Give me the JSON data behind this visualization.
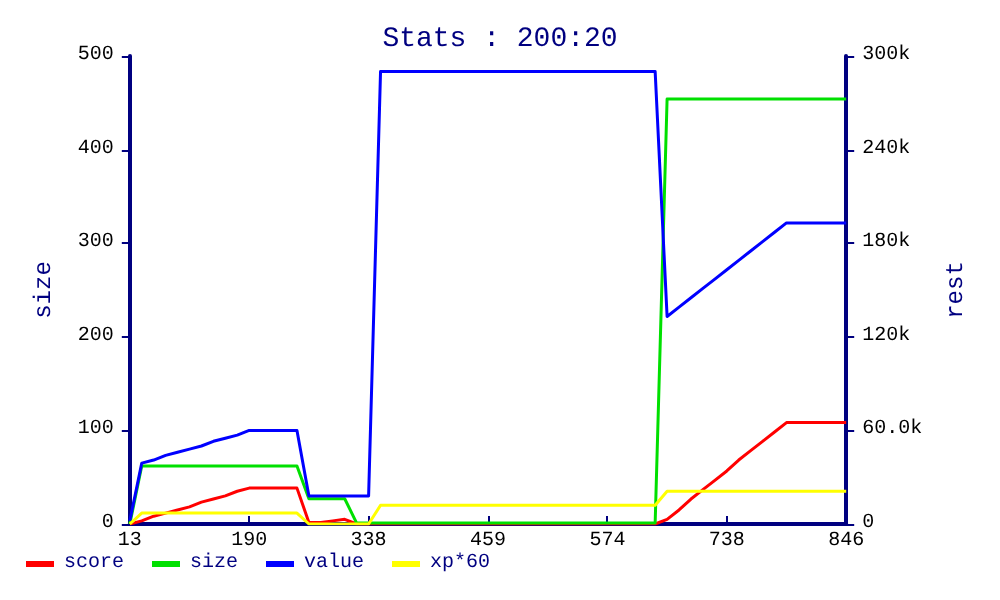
{
  "chart_data": {
    "type": "line",
    "title": "Stats : 200:20",
    "ylabel": "size",
    "y2label": "rest",
    "categories": [
      "13",
      null,
      null,
      null,
      null,
      null,
      null,
      null,
      null,
      null,
      "190",
      null,
      null,
      null,
      null,
      null,
      null,
      null,
      null,
      null,
      "338",
      null,
      null,
      null,
      null,
      null,
      null,
      null,
      null,
      null,
      "459",
      null,
      null,
      null,
      null,
      null,
      null,
      null,
      null,
      null,
      "574",
      null,
      null,
      null,
      null,
      null,
      null,
      null,
      null,
      null,
      "738",
      null,
      null,
      null,
      null,
      null,
      null,
      null,
      null,
      null,
      "846"
    ],
    "ylim": [
      0,
      500
    ],
    "yticks": [
      0,
      100,
      200,
      300,
      400,
      500
    ],
    "y2lim": [
      0,
      300000
    ],
    "y2ticks": [
      0,
      {
        "value": 60000,
        "label": "60.0k"
      },
      {
        "value": 120000,
        "label": "120k"
      },
      {
        "value": 180000,
        "label": "180k"
      },
      {
        "value": 240000,
        "label": "240k"
      },
      {
        "value": 300000,
        "label": "300k"
      }
    ],
    "grid": false,
    "legend": "bottom left",
    "marker": "none",
    "line_style": "solid",
    "series": [
      {
        "name": "score",
        "color": "#ff0000",
        "axis": "y2",
        "values": [
          0,
          2000,
          5000,
          7000,
          9000,
          11000,
          14000,
          16000,
          18000,
          21000,
          23000,
          23000,
          23000,
          23000,
          23000,
          1000,
          1000,
          2000,
          3000,
          0,
          0,
          0,
          0,
          0,
          0,
          0,
          0,
          0,
          0,
          0,
          0,
          0,
          0,
          0,
          0,
          0,
          0,
          0,
          0,
          0,
          0,
          0,
          0,
          0,
          0,
          3000,
          9000,
          16000,
          22000,
          28000,
          34000,
          41000,
          47000,
          53000,
          59000,
          65000,
          65000,
          65000,
          65000,
          65000,
          65000
        ]
      },
      {
        "name": "size",
        "color": "#00e000",
        "values": [
          0,
          62,
          62,
          62,
          62,
          62,
          62,
          62,
          62,
          62,
          62,
          62,
          62,
          62,
          62,
          27,
          27,
          27,
          27,
          1,
          1,
          1,
          1,
          1,
          1,
          1,
          1,
          1,
          1,
          1,
          1,
          1,
          1,
          1,
          1,
          1,
          1,
          1,
          1,
          1,
          1,
          1,
          1,
          1,
          1,
          454,
          454,
          454,
          454,
          454,
          454,
          454,
          454,
          454,
          454,
          454,
          454,
          454,
          454,
          454,
          454
        ]
      },
      {
        "name": "value",
        "color": "#0000ff",
        "axis": "y2",
        "values": [
          2000,
          39000,
          41000,
          44000,
          46000,
          48000,
          50000,
          53000,
          55000,
          57000,
          60000,
          60000,
          60000,
          60000,
          60000,
          18000,
          18000,
          18000,
          18000,
          18000,
          18000,
          290000,
          290000,
          290000,
          290000,
          290000,
          290000,
          290000,
          290000,
          290000,
          290000,
          290000,
          290000,
          290000,
          290000,
          290000,
          290000,
          290000,
          290000,
          290000,
          290000,
          290000,
          290000,
          290000,
          290000,
          133000,
          139000,
          145000,
          151000,
          157000,
          163000,
          169000,
          175000,
          181000,
          187000,
          193000,
          193000,
          193000,
          193000,
          193000,
          193000
        ]
      },
      {
        "name": "xp*60",
        "color": "#ffff00",
        "axis": "y2",
        "values": [
          0,
          7000,
          7000,
          7000,
          7000,
          7000,
          7000,
          7000,
          7000,
          7000,
          7000,
          7000,
          7000,
          7000,
          7000,
          0,
          0,
          0,
          0,
          0,
          0,
          12000,
          12000,
          12000,
          12000,
          12000,
          12000,
          12000,
          12000,
          12000,
          12000,
          12000,
          12000,
          12000,
          12000,
          12000,
          12000,
          12000,
          12000,
          12000,
          12000,
          12000,
          12000,
          12000,
          12000,
          21000,
          21000,
          21000,
          21000,
          21000,
          21000,
          21000,
          21000,
          21000,
          21000,
          21000,
          21000,
          21000,
          21000,
          21000,
          21000
        ]
      }
    ]
  }
}
